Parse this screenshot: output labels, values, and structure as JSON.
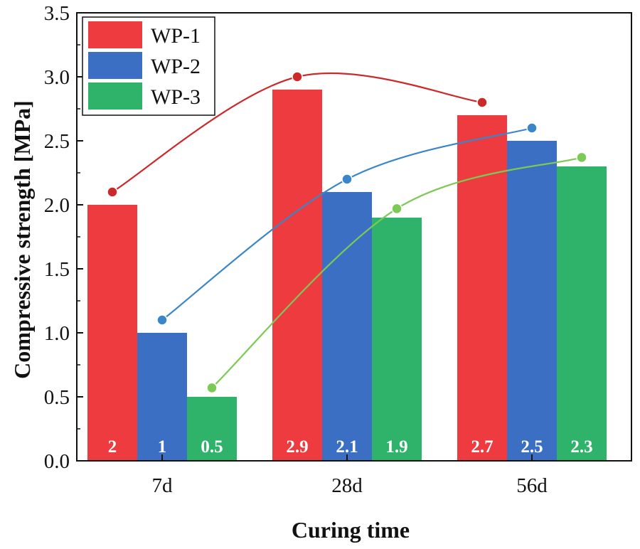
{
  "chart_data": {
    "type": "bar",
    "title": "",
    "xlabel": "Curing time",
    "ylabel": "Compressive strength [MPa]",
    "ylim": [
      0,
      3.5
    ],
    "yticks": [
      "0.0",
      "0.5",
      "1.0",
      "1.5",
      "2.0",
      "2.5",
      "3.0",
      "3.5"
    ],
    "categories": [
      "7d",
      "28d",
      "56d"
    ],
    "legend_position": "top-left",
    "series": [
      {
        "name": "WP-1",
        "color": "#ee3b3f",
        "line_color": "#cc2a2a",
        "values": [
          2,
          2.9,
          2.7
        ],
        "labels": [
          "2",
          "2.9",
          "2.7"
        ],
        "trend": [
          2.1,
          3.0,
          2.8
        ]
      },
      {
        "name": "WP-2",
        "color": "#3a6fc4",
        "line_color": "#3a86c8",
        "values": [
          1,
          2.1,
          2.5
        ],
        "labels": [
          "1",
          "2.1",
          "2.5"
        ],
        "trend": [
          1.1,
          2.2,
          2.6
        ]
      },
      {
        "name": "WP-3",
        "color": "#2fb36b",
        "line_color": "#7cc956",
        "values": [
          0.5,
          1.9,
          2.3
        ],
        "labels": [
          "0.5",
          "1.9",
          "2.3"
        ],
        "trend": [
          0.57,
          1.97,
          2.37
        ]
      }
    ]
  }
}
